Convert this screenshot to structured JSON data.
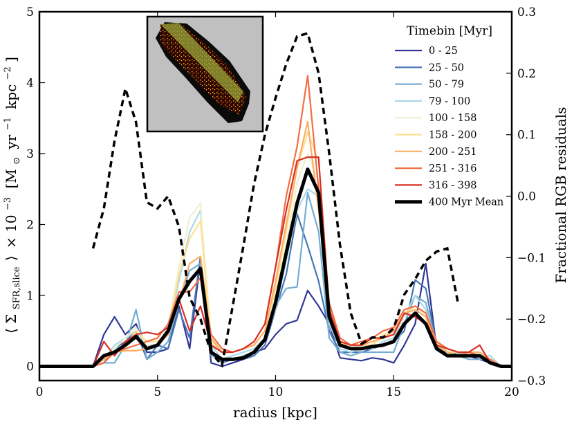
{
  "chart_data": {
    "type": "line",
    "title": "",
    "xlabel": "radius [kpc]",
    "ylabel_left": {
      "bracket_open": "⟨",
      "symbol": "Σ",
      "subscript": "SFR,slice",
      "bracket_close": "⟩",
      "scale_base": "× 10",
      "scale_exp": "−3",
      "units_open": "[M",
      "units_sun": "⊙",
      "units_yr": "yr",
      "units_yr_exp": "−1",
      "units_kpc": "kpc",
      "units_kpc_exp": "−2",
      "units_close": "]"
    },
    "ylabel_right": "Fractional RGB residuals",
    "xlim": [
      0,
      20
    ],
    "ylim_left": [
      -0.2,
      5
    ],
    "ylim_right": [
      -0.3,
      0.3
    ],
    "xticks": [
      0,
      5,
      10,
      15,
      20
    ],
    "yticks_left": [
      0,
      1,
      2,
      3,
      4,
      5
    ],
    "yticks_right": [
      -0.3,
      -0.2,
      -0.1,
      0.0,
      0.1,
      0.2,
      0.3
    ],
    "grid": false,
    "legend": {
      "title": "Timebin [Myr]",
      "position": "top-right"
    },
    "x": [
      0,
      2.27,
      2.73,
      3.18,
      3.64,
      4.09,
      4.55,
      5.0,
      5.45,
      5.91,
      6.36,
      6.82,
      7.27,
      7.73,
      8.18,
      8.64,
      9.09,
      9.55,
      10.0,
      10.45,
      10.91,
      11.36,
      11.82,
      12.27,
      12.73,
      13.18,
      13.64,
      14.09,
      14.55,
      15.0,
      15.45,
      15.91,
      16.36,
      16.82,
      17.27,
      17.73,
      18.18,
      18.64,
      19.09,
      19.55,
      20.0
    ],
    "series": [
      {
        "name": "0 - 25",
        "color": "#313695",
        "width": 2.2,
        "values": [
          0,
          0,
          0.45,
          0.7,
          0.45,
          0.6,
          0.2,
          0.2,
          0.25,
          0.85,
          0.25,
          1.5,
          0.05,
          0.0,
          0.05,
          0.1,
          0.2,
          0.25,
          0.45,
          0.6,
          0.65,
          1.07,
          0.85,
          0.6,
          0.12,
          0.1,
          0.08,
          0.12,
          0.1,
          0.05,
          0.3,
          0.6,
          1.45,
          0.25,
          0.2,
          0.15,
          0.15,
          0.1,
          0.05,
          0,
          0
        ]
      },
      {
        "name": "25 - 50",
        "color": "#4575b4",
        "width": 2.2,
        "values": [
          0,
          0,
          0.05,
          0.25,
          0.35,
          0.5,
          0.1,
          0.3,
          0.25,
          0.8,
          0.4,
          1.55,
          0.2,
          0.05,
          0.1,
          0.1,
          0.15,
          0.3,
          0.8,
          1.3,
          2.15,
          1.7,
          1.2,
          0.5,
          0.2,
          0.2,
          0.2,
          0.25,
          0.3,
          0.35,
          0.5,
          1.22,
          1.1,
          0.3,
          0.15,
          0.2,
          0.15,
          0.15,
          0.1,
          0,
          0
        ]
      },
      {
        "name": "50 - 79",
        "color": "#74add1",
        "width": 2.2,
        "values": [
          0,
          0,
          0.05,
          0.05,
          0.3,
          0.8,
          0.1,
          0.2,
          0.35,
          0.9,
          1.35,
          1.45,
          0.15,
          0.1,
          0.1,
          0.15,
          0.2,
          0.4,
          0.85,
          1.1,
          1.12,
          2.45,
          1.9,
          0.4,
          0.2,
          0.15,
          0.2,
          0.2,
          0.2,
          0.2,
          0.6,
          1.0,
          0.9,
          0.3,
          0.15,
          0.15,
          0.1,
          0.1,
          0.1,
          0,
          0
        ]
      },
      {
        "name": "79 - 100",
        "color": "#abd9e9",
        "width": 2.2,
        "values": [
          0,
          0,
          0.1,
          0.3,
          0.4,
          0.5,
          0.3,
          0.3,
          0.5,
          1.2,
          1.9,
          2.2,
          0.3,
          0.1,
          0.15,
          0.2,
          0.25,
          0.4,
          0.8,
          1.5,
          2.2,
          2.5,
          2.4,
          0.6,
          0.25,
          0.2,
          0.25,
          0.25,
          0.35,
          0.4,
          0.7,
          1.0,
          0.8,
          0.3,
          0.2,
          0.2,
          0.15,
          0.15,
          0.15,
          0,
          0
        ]
      },
      {
        "name": "100 - 158",
        "color": "#f1efd2",
        "width": 2.2,
        "values": [
          0,
          0,
          0.1,
          0.25,
          0.4,
          0.55,
          0.3,
          0.3,
          0.55,
          1.4,
          2.1,
          2.3,
          0.4,
          0.2,
          0.2,
          0.25,
          0.3,
          0.5,
          1.0,
          1.7,
          2.6,
          3.0,
          2.6,
          0.8,
          0.3,
          0.25,
          0.3,
          0.3,
          0.4,
          0.45,
          0.7,
          0.8,
          0.7,
          0.35,
          0.2,
          0.2,
          0.2,
          0.15,
          0.1,
          0,
          0
        ]
      },
      {
        "name": "158 - 200",
        "color": "#fee090",
        "width": 2.2,
        "values": [
          0,
          0,
          0.1,
          0.2,
          0.3,
          0.5,
          0.35,
          0.35,
          0.5,
          1.3,
          1.8,
          2.05,
          0.35,
          0.2,
          0.2,
          0.25,
          0.3,
          0.5,
          1.1,
          1.9,
          2.8,
          3.3,
          2.9,
          0.9,
          0.35,
          0.25,
          0.3,
          0.3,
          0.45,
          0.5,
          0.75,
          0.85,
          0.75,
          0.35,
          0.2,
          0.2,
          0.2,
          0.15,
          0.1,
          0,
          0
        ]
      },
      {
        "name": "200 - 251",
        "color": "#fdae61",
        "width": 2.2,
        "values": [
          0,
          0,
          0.1,
          0.2,
          0.22,
          0.22,
          0.25,
          0.3,
          0.45,
          0.9,
          1.45,
          1.55,
          0.4,
          0.2,
          0.2,
          0.25,
          0.3,
          0.5,
          1.2,
          2.0,
          2.8,
          3.45,
          2.2,
          0.9,
          0.35,
          0.3,
          0.3,
          0.35,
          0.4,
          0.5,
          0.75,
          0.8,
          0.7,
          0.3,
          0.2,
          0.15,
          0.2,
          0.2,
          0.1,
          0,
          0
        ]
      },
      {
        "name": "251 - 316",
        "color": "#f46d43",
        "width": 2.2,
        "values": [
          0,
          0,
          0.05,
          0.2,
          0.25,
          0.3,
          0.35,
          0.4,
          0.6,
          1.05,
          1.05,
          1.25,
          0.45,
          0.25,
          0.2,
          0.25,
          0.35,
          0.6,
          1.4,
          2.4,
          3.1,
          4.1,
          2.5,
          0.9,
          0.4,
          0.3,
          0.35,
          0.4,
          0.5,
          0.55,
          0.8,
          0.85,
          0.75,
          0.35,
          0.25,
          0.2,
          0.2,
          0.15,
          0.1,
          0,
          0
        ]
      },
      {
        "name": "316 - 398",
        "color": "#d73027",
        "width": 2.2,
        "values": [
          0,
          0,
          0.35,
          0.15,
          0.35,
          0.45,
          0.48,
          0.45,
          0.55,
          0.95,
          0.5,
          0.85,
          0.3,
          0.2,
          0.2,
          0.25,
          0.35,
          0.6,
          1.4,
          2.2,
          2.9,
          2.95,
          2.95,
          0.8,
          0.35,
          0.3,
          0.3,
          0.4,
          0.4,
          0.45,
          0.75,
          0.7,
          0.6,
          0.3,
          0.25,
          0.2,
          0.2,
          0.3,
          0.05,
          0,
          0
        ]
      },
      {
        "name": "400 Myr Mean",
        "color": "#000000",
        "width": 5,
        "values": [
          0,
          0,
          0.15,
          0.2,
          0.3,
          0.42,
          0.25,
          0.3,
          0.5,
          0.95,
          1.2,
          1.38,
          0.2,
          0.1,
          0.1,
          0.12,
          0.2,
          0.38,
          0.9,
          1.6,
          2.3,
          2.78,
          2.45,
          0.7,
          0.3,
          0.25,
          0.25,
          0.28,
          0.3,
          0.35,
          0.6,
          0.75,
          0.6,
          0.25,
          0.15,
          0.15,
          0.15,
          0.15,
          0.05,
          0,
          0
        ]
      }
    ],
    "residuals": {
      "axis": "right",
      "style": "dashed",
      "color": "#000000",
      "x": [
        2.27,
        2.73,
        3.18,
        3.64,
        4.09,
        4.55,
        5.0,
        5.45,
        5.91,
        6.36,
        6.82,
        7.27,
        7.73,
        8.18,
        8.64,
        9.09,
        9.55,
        10.0,
        10.45,
        10.91,
        11.36,
        11.82,
        12.27,
        12.73,
        13.18,
        13.64,
        14.09,
        14.55,
        15.0,
        15.45,
        15.91,
        16.36,
        16.82,
        17.27,
        17.73
      ],
      "values": [
        -0.085,
        -0.02,
        0.09,
        0.175,
        0.12,
        -0.01,
        -0.02,
        0.0,
        -0.05,
        -0.165,
        -0.2,
        -0.255,
        -0.275,
        -0.18,
        -0.08,
        0.02,
        0.1,
        0.16,
        0.215,
        0.26,
        0.265,
        0.2,
        0.07,
        -0.08,
        -0.19,
        -0.24,
        -0.23,
        -0.23,
        -0.215,
        -0.16,
        -0.135,
        -0.105,
        -0.09,
        -0.085,
        -0.175
      ]
    }
  },
  "inset": {
    "background": "#c0c0c0",
    "stripe_color": "#9aa63a"
  }
}
